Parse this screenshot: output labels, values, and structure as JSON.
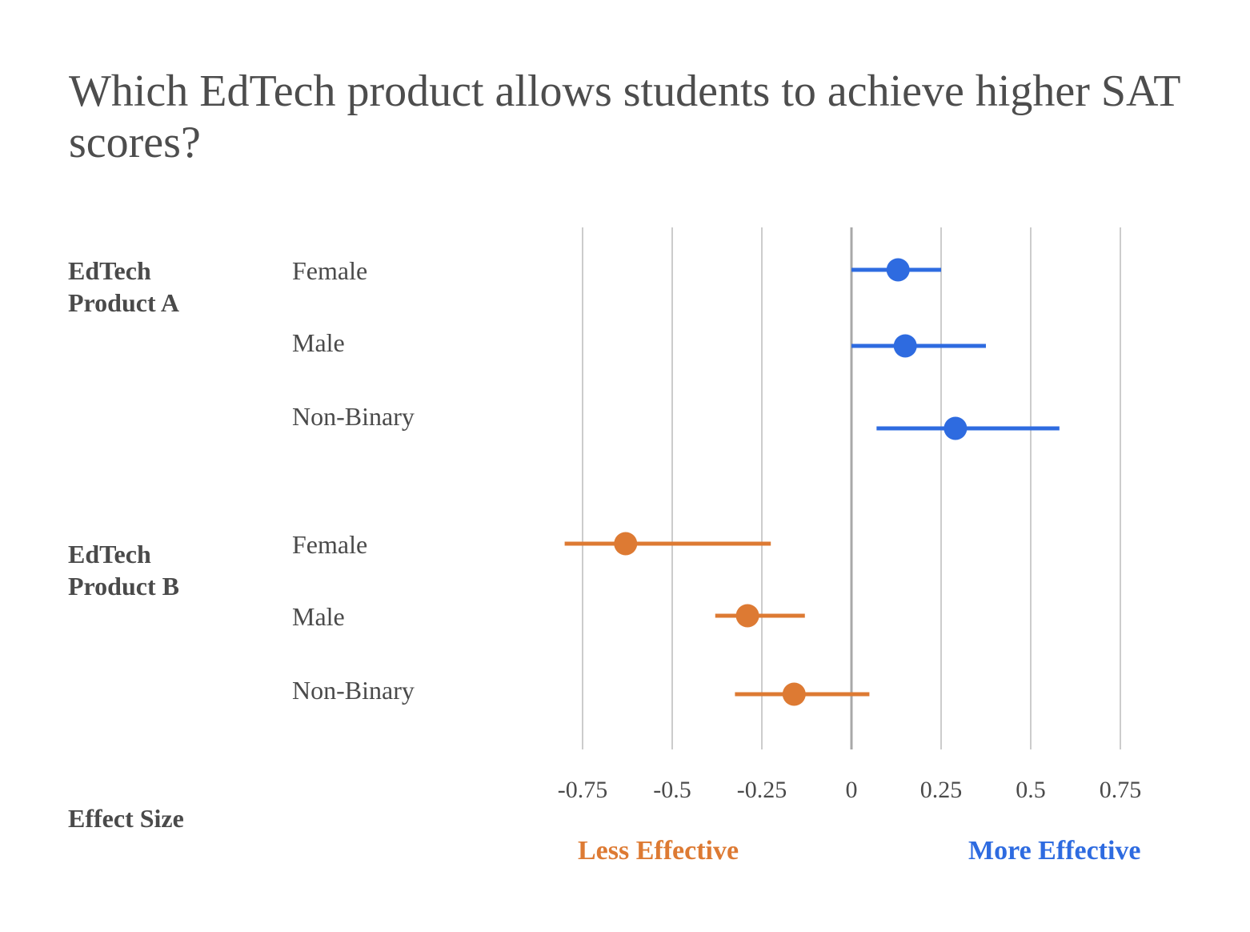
{
  "chart_data": {
    "type": "scatter",
    "subtype": "forest-plot",
    "title": "Which EdTech product allows students to achieve higher SAT scores?",
    "xlabel": "Effect Size",
    "xlim": [
      -0.8,
      0.8
    ],
    "xticks": [
      -0.75,
      -0.5,
      -0.25,
      0,
      0.25,
      0.5,
      0.75
    ],
    "xtick_labels": [
      "-0.75",
      "-0.5",
      "-0.25",
      "0",
      "0.25",
      "0.5",
      "0.75"
    ],
    "grid": true,
    "reference_line": 0,
    "direction_labels": {
      "negative": {
        "text": "Less Effective",
        "color": "#dd7a33"
      },
      "positive": {
        "text": "More Effective",
        "color": "#2e6be0"
      }
    },
    "groups": [
      {
        "name": "EdTech Product A",
        "name_lines": [
          "EdTech",
          "Product A"
        ],
        "color": "#2e6be0",
        "rows": [
          {
            "label": "Female",
            "estimate": 0.13,
            "ci_low": 0.0,
            "ci_high": 0.25
          },
          {
            "label": "Male",
            "estimate": 0.15,
            "ci_low": 0.0,
            "ci_high": 0.375
          },
          {
            "label": "Non-Binary",
            "estimate": 0.29,
            "ci_low": 0.07,
            "ci_high": 0.58
          }
        ]
      },
      {
        "name": "EdTech Product B",
        "name_lines": [
          "EdTech",
          "Product B"
        ],
        "color": "#dd7a33",
        "rows": [
          {
            "label": "Female",
            "estimate": -0.63,
            "ci_low": -0.8,
            "ci_high": -0.225
          },
          {
            "label": "Male",
            "estimate": -0.29,
            "ci_low": -0.38,
            "ci_high": -0.13
          },
          {
            "label": "Non-Binary",
            "estimate": -0.16,
            "ci_low": -0.325,
            "ci_high": 0.05
          }
        ]
      }
    ]
  }
}
